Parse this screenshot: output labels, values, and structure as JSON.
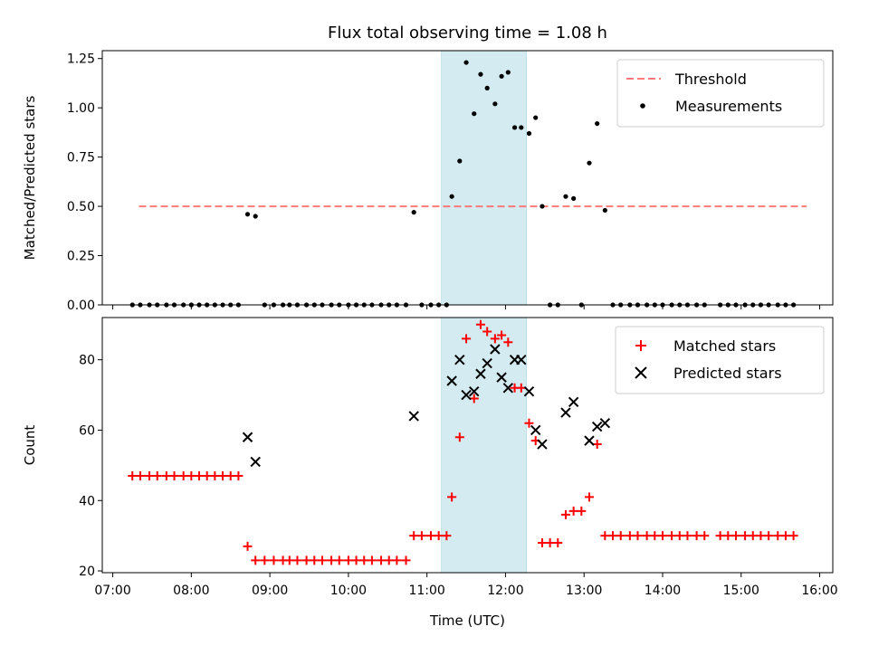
{
  "chart_data": [
    {
      "type": "scatter",
      "title": "Flux total observing time = 1.08 h",
      "ylabel": "Matched/Predicted stars",
      "xlim": [
        "06:52",
        "16:10"
      ],
      "ylim": [
        0,
        1.29
      ],
      "yticks": [
        "0.00",
        "0.25",
        "0.50",
        "0.75",
        "1.00",
        "1.25"
      ],
      "span": {
        "start": "11:11",
        "end": "12:16",
        "color": "#d3ebf1"
      },
      "threshold": {
        "name": "Threshold",
        "value": 0.5,
        "x_start": "07:20",
        "x_end": "15:50",
        "color": "#ff7a7a"
      },
      "legend": "top-right",
      "series": [
        {
          "name": "Measurements",
          "color": "#000000",
          "points": [
            [
              "07:15",
              0
            ],
            [
              "07:21",
              0
            ],
            [
              "07:28",
              0
            ],
            [
              "07:34",
              0
            ],
            [
              "07:41",
              0
            ],
            [
              "07:47",
              0
            ],
            [
              "07:54",
              0
            ],
            [
              "08:00",
              0
            ],
            [
              "08:06",
              0
            ],
            [
              "08:12",
              0
            ],
            [
              "08:18",
              0
            ],
            [
              "08:24",
              0
            ],
            [
              "08:30",
              0
            ],
            [
              "08:36",
              0
            ],
            [
              "08:43",
              0.46
            ],
            [
              "08:49",
              0.45
            ],
            [
              "08:56",
              0
            ],
            [
              "09:03",
              0
            ],
            [
              "09:10",
              0
            ],
            [
              "09:15",
              0
            ],
            [
              "09:21",
              0
            ],
            [
              "09:28",
              0
            ],
            [
              "09:34",
              0
            ],
            [
              "09:40",
              0
            ],
            [
              "09:47",
              0
            ],
            [
              "09:53",
              0
            ],
            [
              "10:00",
              0
            ],
            [
              "10:06",
              0
            ],
            [
              "10:12",
              0
            ],
            [
              "10:18",
              0
            ],
            [
              "10:25",
              0
            ],
            [
              "10:31",
              0
            ],
            [
              "10:37",
              0
            ],
            [
              "10:44",
              0
            ],
            [
              "10:50",
              0.47
            ],
            [
              "10:56",
              0
            ],
            [
              "11:03",
              0
            ],
            [
              "11:09",
              0
            ],
            [
              "11:15",
              0
            ],
            [
              "11:19",
              0.55
            ],
            [
              "11:25",
              0.73
            ],
            [
              "11:30",
              1.23
            ],
            [
              "11:36",
              0.97
            ],
            [
              "11:41",
              1.17
            ],
            [
              "11:46",
              1.1
            ],
            [
              "11:52",
              1.02
            ],
            [
              "11:57",
              1.16
            ],
            [
              "12:02",
              1.18
            ],
            [
              "12:07",
              0.9
            ],
            [
              "12:12",
              0.9
            ],
            [
              "12:18",
              0.87
            ],
            [
              "12:23",
              0.95
            ],
            [
              "12:28",
              0.5
            ],
            [
              "12:34",
              0
            ],
            [
              "12:40",
              0
            ],
            [
              "12:46",
              0.55
            ],
            [
              "12:52",
              0.54
            ],
            [
              "12:58",
              0
            ],
            [
              "13:04",
              0.72
            ],
            [
              "13:10",
              0.92
            ],
            [
              "13:16",
              0.48
            ],
            [
              "13:22",
              0
            ],
            [
              "13:28",
              0
            ],
            [
              "13:35",
              0
            ],
            [
              "13:41",
              0
            ],
            [
              "13:48",
              0
            ],
            [
              "13:54",
              0
            ],
            [
              "14:00",
              0
            ],
            [
              "14:07",
              0
            ],
            [
              "14:13",
              0
            ],
            [
              "14:19",
              0
            ],
            [
              "14:26",
              0
            ],
            [
              "14:32",
              0
            ],
            [
              "14:44",
              0
            ],
            [
              "14:50",
              0
            ],
            [
              "14:56",
              0
            ],
            [
              "15:03",
              0
            ],
            [
              "15:09",
              0
            ],
            [
              "15:15",
              0
            ],
            [
              "15:21",
              0
            ],
            [
              "15:28",
              0
            ],
            [
              "15:34",
              0
            ],
            [
              "15:40",
              0
            ]
          ]
        }
      ]
    },
    {
      "type": "scatter",
      "xlabel": "Time (UTC)",
      "ylabel": "Count",
      "xlim": [
        "06:52",
        "16:10"
      ],
      "ylim": [
        19.5,
        92
      ],
      "yticks": [
        "20",
        "40",
        "60",
        "80"
      ],
      "xticks": [
        "07:00",
        "08:00",
        "09:00",
        "10:00",
        "11:00",
        "12:00",
        "13:00",
        "14:00",
        "15:00",
        "16:00"
      ],
      "span": {
        "start": "11:11",
        "end": "12:16",
        "color": "#d3ebf1"
      },
      "legend": "top-right",
      "series": [
        {
          "name": "Matched stars",
          "color": "#ff0000",
          "marker": "+",
          "points": [
            [
              "07:15",
              47
            ],
            [
              "07:21",
              47
            ],
            [
              "07:28",
              47
            ],
            [
              "07:34",
              47
            ],
            [
              "07:41",
              47
            ],
            [
              "07:47",
              47
            ],
            [
              "07:54",
              47
            ],
            [
              "08:00",
              47
            ],
            [
              "08:06",
              47
            ],
            [
              "08:12",
              47
            ],
            [
              "08:18",
              47
            ],
            [
              "08:24",
              47
            ],
            [
              "08:30",
              47
            ],
            [
              "08:36",
              47
            ],
            [
              "08:43",
              27
            ],
            [
              "08:49",
              23
            ],
            [
              "08:56",
              23
            ],
            [
              "09:03",
              23
            ],
            [
              "09:10",
              23
            ],
            [
              "09:15",
              23
            ],
            [
              "09:21",
              23
            ],
            [
              "09:28",
              23
            ],
            [
              "09:34",
              23
            ],
            [
              "09:40",
              23
            ],
            [
              "09:47",
              23
            ],
            [
              "09:53",
              23
            ],
            [
              "10:00",
              23
            ],
            [
              "10:06",
              23
            ],
            [
              "10:12",
              23
            ],
            [
              "10:18",
              23
            ],
            [
              "10:25",
              23
            ],
            [
              "10:31",
              23
            ],
            [
              "10:37",
              23
            ],
            [
              "10:44",
              23
            ],
            [
              "10:50",
              30
            ],
            [
              "10:56",
              30
            ],
            [
              "11:03",
              30
            ],
            [
              "11:09",
              30
            ],
            [
              "11:15",
              30
            ],
            [
              "11:19",
              41
            ],
            [
              "11:25",
              58
            ],
            [
              "11:30",
              86
            ],
            [
              "11:36",
              69
            ],
            [
              "11:41",
              90
            ],
            [
              "11:46",
              88
            ],
            [
              "11:52",
              86
            ],
            [
              "11:57",
              87
            ],
            [
              "12:02",
              85
            ],
            [
              "12:07",
              72
            ],
            [
              "12:12",
              72
            ],
            [
              "12:18",
              62
            ],
            [
              "12:23",
              57
            ],
            [
              "12:28",
              28
            ],
            [
              "12:34",
              28
            ],
            [
              "12:40",
              28
            ],
            [
              "12:46",
              36
            ],
            [
              "12:52",
              37
            ],
            [
              "12:58",
              37
            ],
            [
              "13:04",
              41
            ],
            [
              "13:10",
              56
            ],
            [
              "13:16",
              30
            ],
            [
              "13:22",
              30
            ],
            [
              "13:28",
              30
            ],
            [
              "13:35",
              30
            ],
            [
              "13:41",
              30
            ],
            [
              "13:48",
              30
            ],
            [
              "13:54",
              30
            ],
            [
              "14:00",
              30
            ],
            [
              "14:07",
              30
            ],
            [
              "14:13",
              30
            ],
            [
              "14:19",
              30
            ],
            [
              "14:26",
              30
            ],
            [
              "14:32",
              30
            ],
            [
              "14:44",
              30
            ],
            [
              "14:50",
              30
            ],
            [
              "14:56",
              30
            ],
            [
              "15:03",
              30
            ],
            [
              "15:09",
              30
            ],
            [
              "15:15",
              30
            ],
            [
              "15:21",
              30
            ],
            [
              "15:28",
              30
            ],
            [
              "15:34",
              30
            ],
            [
              "15:40",
              30
            ]
          ]
        },
        {
          "name": "Predicted stars",
          "color": "#000000",
          "marker": "x",
          "points": [
            [
              "08:43",
              58
            ],
            [
              "08:49",
              51
            ],
            [
              "10:50",
              64
            ],
            [
              "11:19",
              74
            ],
            [
              "11:25",
              80
            ],
            [
              "11:30",
              70
            ],
            [
              "11:36",
              71
            ],
            [
              "11:41",
              76
            ],
            [
              "11:46",
              79
            ],
            [
              "11:52",
              83
            ],
            [
              "11:57",
              75
            ],
            [
              "12:02",
              72
            ],
            [
              "12:07",
              80
            ],
            [
              "12:12",
              80
            ],
            [
              "12:18",
              71
            ],
            [
              "12:23",
              60
            ],
            [
              "12:28",
              56
            ],
            [
              "12:46",
              65
            ],
            [
              "12:52",
              68
            ],
            [
              "13:04",
              57
            ],
            [
              "13:10",
              61
            ],
            [
              "13:16",
              62
            ]
          ]
        }
      ]
    }
  ]
}
